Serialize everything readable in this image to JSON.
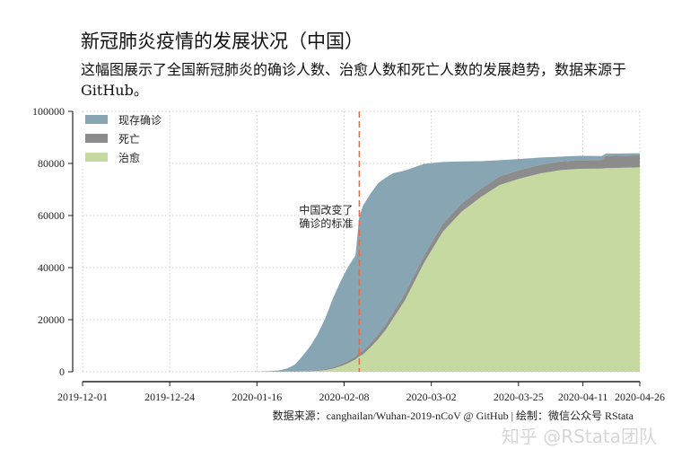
{
  "title": "新冠肺炎疫情的发展状况（中国）",
  "subtitle": "这幅图展示了全国新冠肺炎的确诊人数、治愈人数和死亡人数的发展趋势，数据来源于 GitHub。",
  "footer": "数据来源：canghailan/Wuhan-2019-nCoV @ GitHub | 绘制：微信公众号 RStata",
  "watermark": "知乎 @RStata团队",
  "chart_data": {
    "type": "area",
    "stacked": true,
    "title": "",
    "xlabel": "",
    "ylabel": "",
    "ylim": [
      0,
      100000
    ],
    "xlim": [
      "2019-12-01",
      "2020-04-26"
    ],
    "grid": true,
    "legend_position": "top-left",
    "yticks": [
      "0",
      "20000",
      "40000",
      "60000",
      "80000",
      "100000"
    ],
    "xticks": [
      "2019-12-01",
      "2019-12-24",
      "2020-01-16",
      "2020-02-08",
      "2020-03-02",
      "2020-03-25",
      "2020-04-11",
      "2020-04-26"
    ],
    "annotation": {
      "date": "2020-02-12",
      "text": [
        "中国改变了",
        "确诊的标准"
      ],
      "color": "#d9704f"
    },
    "dates": [
      "2020-01-10",
      "2020-01-16",
      "2020-01-20",
      "2020-01-22",
      "2020-01-24",
      "2020-01-26",
      "2020-01-28",
      "2020-01-30",
      "2020-02-01",
      "2020-02-03",
      "2020-02-05",
      "2020-02-07",
      "2020-02-09",
      "2020-02-11",
      "2020-02-12",
      "2020-02-13",
      "2020-02-15",
      "2020-02-17",
      "2020-02-19",
      "2020-02-21",
      "2020-02-24",
      "2020-02-29",
      "2020-03-05",
      "2020-03-10",
      "2020-03-15",
      "2020-03-20",
      "2020-03-25",
      "2020-03-31",
      "2020-04-05",
      "2020-04-10",
      "2020-04-16",
      "2020-04-17",
      "2020-04-26"
    ],
    "series": [
      {
        "name": "治愈",
        "color": "#c5d9a1",
        "values": [
          0,
          5,
          25,
          28,
          34,
          51,
          103,
          171,
          328,
          632,
          1153,
          2050,
          3281,
          4740,
          5911,
          6723,
          9419,
          12552,
          16155,
          20659,
          27323,
          41625,
          53726,
          61475,
          67017,
          71740,
          74051,
          76238,
          77410,
          77945,
          78000,
          78200,
          78500
        ]
      },
      {
        "name": "死亡",
        "color": "#8c8c8c",
        "values": [
          0,
          2,
          6,
          17,
          41,
          80,
          132,
          213,
          304,
          425,
          563,
          722,
          908,
          1113,
          1368,
          1380,
          1665,
          1868,
          2118,
          2345,
          2595,
          2835,
          3042,
          3136,
          3199,
          3253,
          3285,
          3312,
          3330,
          3340,
          3342,
          4636,
          4637
        ]
      },
      {
        "name": "现存确诊",
        "color": "#87a5b3",
        "values": [
          41,
          38,
          260,
          526,
          1212,
          2613,
          5739,
          9308,
          13748,
          19381,
          26302,
          31774,
          35982,
          38800,
          52525,
          55748,
          57416,
          58016,
          56303,
          53284,
          47344,
          35364,
          23784,
          16167,
          10644,
          6257,
          4325,
          2729,
          1862,
          1656,
          1518,
          924,
          775
        ]
      }
    ]
  }
}
